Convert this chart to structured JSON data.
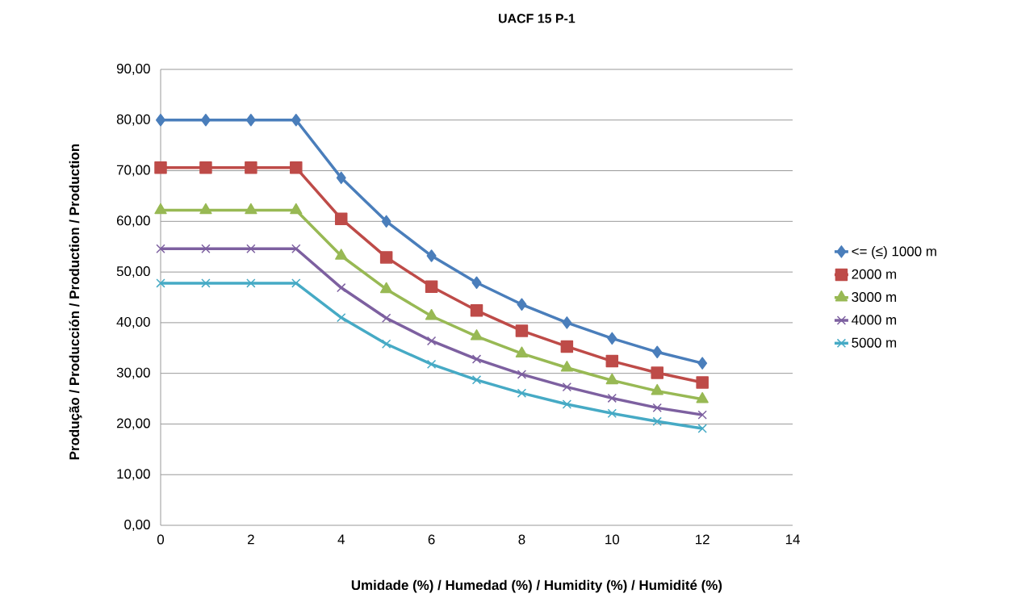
{
  "chart_data": {
    "type": "line",
    "title": "UACF 15 P-1",
    "xlabel": "Umidade (%) / Humedad (%) / Humidity (%) / Humidité (%)",
    "ylabel": "Produção / Producción / Production / Production",
    "x": [
      0,
      1,
      2,
      3,
      4,
      5,
      6,
      7,
      8,
      9,
      10,
      11,
      12
    ],
    "series": [
      {
        "name": "<= (≤) 1000 m",
        "color": "#4a7ebb",
        "marker": "diamond",
        "values": [
          80,
          80,
          80,
          80,
          68.6,
          60,
          53.2,
          47.9,
          43.6,
          40,
          36.9,
          34.2,
          32
        ]
      },
      {
        "name": "2000 m",
        "color": "#be4b48",
        "marker": "square",
        "values": [
          70.6,
          70.6,
          70.6,
          70.6,
          60.5,
          52.9,
          47.1,
          42.4,
          38.4,
          35.3,
          32.4,
          30.1,
          28.2
        ]
      },
      {
        "name": "3000 m",
        "color": "#98b954",
        "marker": "triangle",
        "values": [
          62.2,
          62.2,
          62.2,
          62.2,
          53.2,
          46.6,
          41.3,
          37.3,
          33.9,
          31.1,
          28.6,
          26.5,
          24.9
        ]
      },
      {
        "name": "4000 m",
        "color": "#7d60a0",
        "marker": "cross",
        "values": [
          54.6,
          54.6,
          54.6,
          54.6,
          46.9,
          40.9,
          36.4,
          32.8,
          29.8,
          27.3,
          25.1,
          23.2,
          21.8
        ]
      },
      {
        "name": "5000 m",
        "color": "#46aac5",
        "marker": "cross",
        "values": [
          47.8,
          47.8,
          47.8,
          47.8,
          41,
          35.8,
          31.8,
          28.7,
          26.1,
          23.9,
          22.1,
          20.5,
          19.1
        ]
      }
    ],
    "xlim": [
      0,
      14
    ],
    "xticks": [
      0,
      2,
      4,
      6,
      8,
      10,
      12,
      14
    ],
    "ylim": [
      0,
      90
    ],
    "yticks": [
      {
        "value": 0,
        "label": "0,00"
      },
      {
        "value": 10,
        "label": "10,00"
      },
      {
        "value": 20,
        "label": "20,00"
      },
      {
        "value": 30,
        "label": "30,00"
      },
      {
        "value": 40,
        "label": "40,00"
      },
      {
        "value": 50,
        "label": "50,00"
      },
      {
        "value": 60,
        "label": "60,00"
      },
      {
        "value": 70,
        "label": "70,00"
      },
      {
        "value": 80,
        "label": "80,00"
      },
      {
        "value": 90,
        "label": "90,00"
      }
    ],
    "grid": "y",
    "legend": "right",
    "line_style": "solid"
  }
}
